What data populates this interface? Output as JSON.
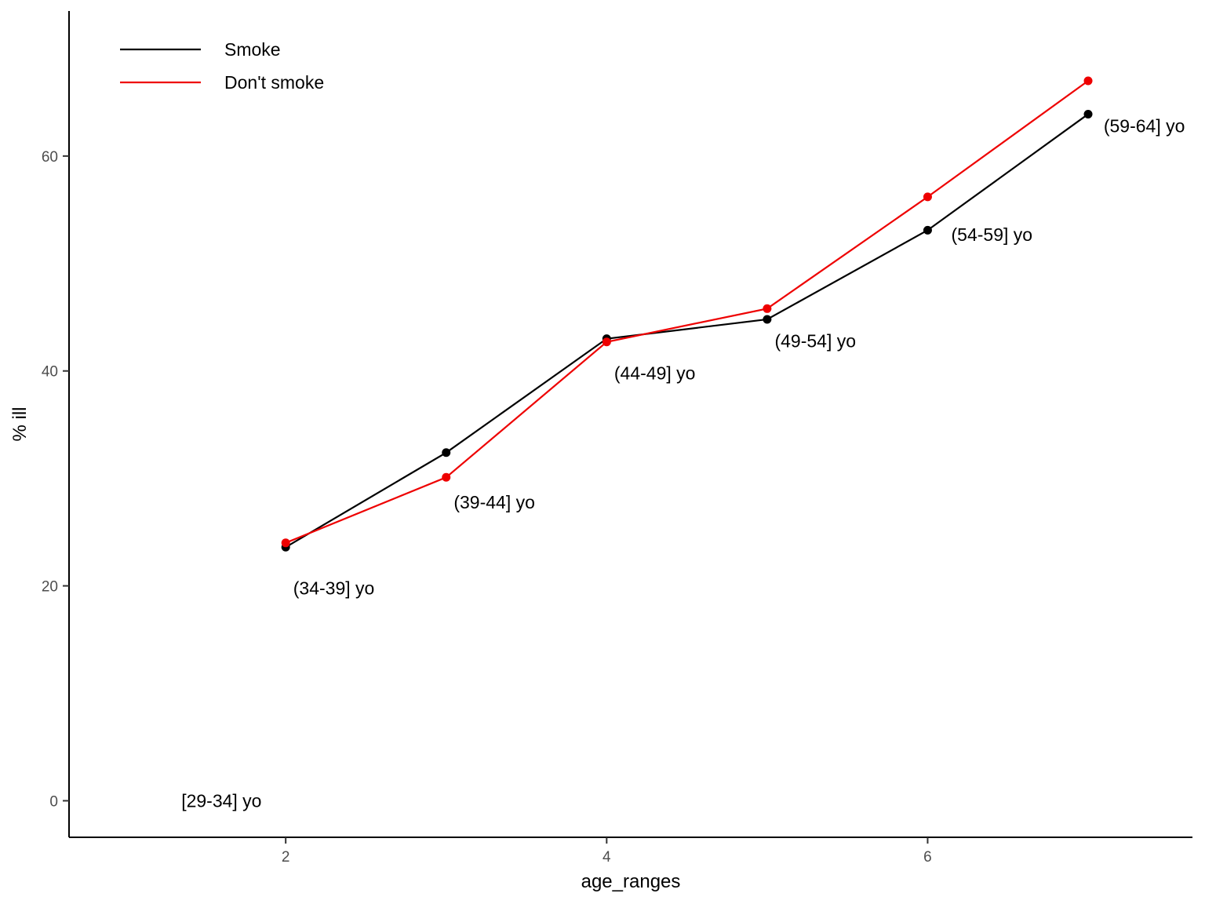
{
  "chart_data": {
    "type": "line",
    "title": "",
    "xlabel": "age_ranges",
    "ylabel": "% ill",
    "xlim": [
      0.65,
      7.65
    ],
    "ylim": [
      -3.4,
      73.5
    ],
    "x_ticks": [
      2,
      4,
      6
    ],
    "y_ticks": [
      0,
      20,
      40,
      60
    ],
    "grid": false,
    "legend_position": "top-left",
    "series": [
      {
        "name": "Smoke",
        "color": "#000000",
        "x": [
          2,
          3,
          4,
          5,
          6,
          7
        ],
        "y": [
          23.6,
          32.4,
          43.0,
          44.8,
          53.1,
          63.9
        ]
      },
      {
        "name": "Don't smoke",
        "color": "#ee0000",
        "x": [
          2,
          3,
          4,
          5,
          6,
          7
        ],
        "y": [
          24.0,
          30.1,
          42.7,
          45.8,
          56.2,
          67.0
        ]
      }
    ],
    "annotations": [
      {
        "text": "[29-34] yo",
        "x": 1.6,
        "y": 0
      },
      {
        "text": "(34-39] yo",
        "x": 2.3,
        "y": 19.8
      },
      {
        "text": "(39-44] yo",
        "x": 3.3,
        "y": 27.8
      },
      {
        "text": "(44-49] yo",
        "x": 4.3,
        "y": 39.8
      },
      {
        "text": "(49-54] yo",
        "x": 5.3,
        "y": 42.8
      },
      {
        "text": "(54-59] yo",
        "x": 6.4,
        "y": 52.7
      },
      {
        "text": "(59-64] yo",
        "x": 7.35,
        "y": 62.8
      }
    ]
  }
}
